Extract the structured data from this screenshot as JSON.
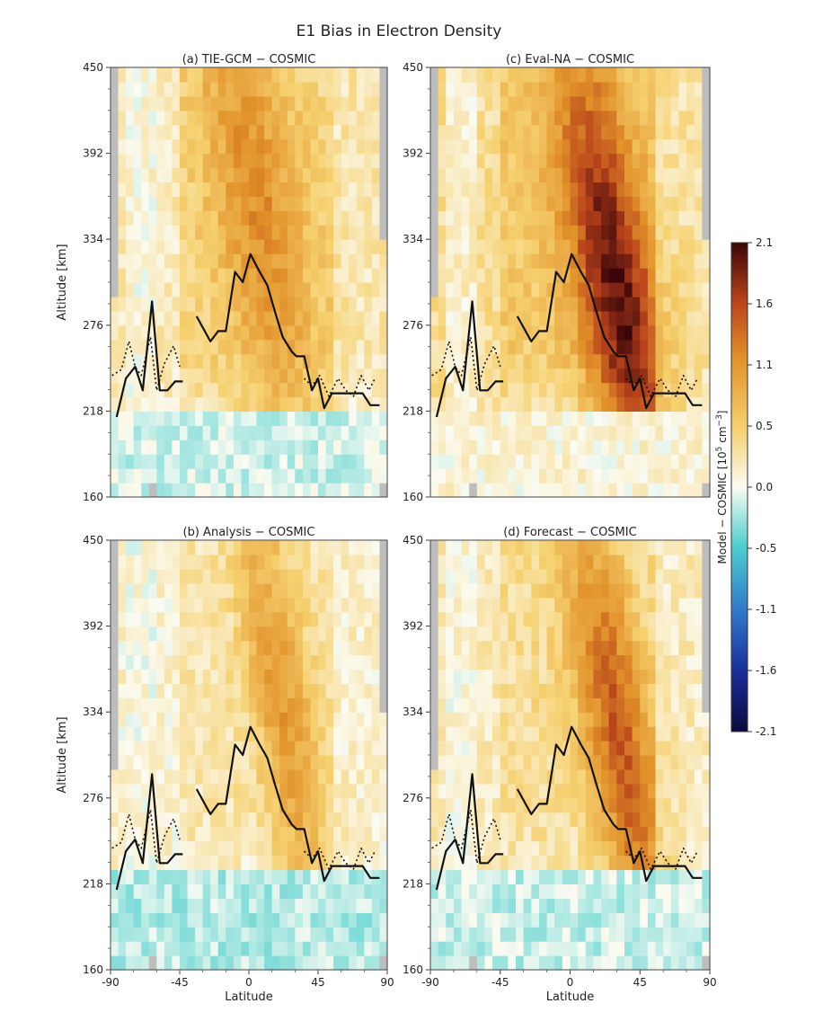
{
  "figure": {
    "suptitle": "E1 Bias in Electron Density"
  },
  "chart_data": [
    {
      "type": "heatmap",
      "panel": "a",
      "title": "(a) TIE-GCM − COSMIC",
      "xlabel": "",
      "ylabel": "Altitude [km]",
      "xlim": [
        -90,
        90
      ],
      "ylim": [
        160,
        450
      ],
      "xticks": [],
      "yticks": [
        160,
        218,
        276,
        334,
        392,
        450
      ],
      "bias_pattern": {
        "peak_lat": 5,
        "peak_alt": 360,
        "peak": 1.1,
        "tilt_deg_per_km": 0.14,
        "width_lat": 28,
        "bg": 0.45,
        "south_bg": 0.2,
        "low_alt_value": -0.12,
        "low_alt_cut": 222
      },
      "lines": [
        {
          "name": "",
          "style": "solid",
          "segments": [
            [
              [
                -86,
                214
              ],
              [
                -80,
                240
              ],
              [
                -74,
                248
              ],
              [
                -69,
                232
              ],
              [
                -63,
                292
              ],
              [
                -58,
                232
              ],
              [
                -53,
                232
              ],
              [
                -48,
                238
              ],
              [
                -43,
                238
              ]
            ],
            [
              [
                -34,
                282
              ],
              [
                -25,
                265
              ],
              [
                -20,
                272
              ],
              [
                -15,
                272
              ],
              [
                -9,
                312
              ],
              [
                -4,
                305
              ],
              [
                1,
                324
              ],
              [
                7,
                312
              ],
              [
                12,
                303
              ],
              [
                17,
                285
              ],
              [
                22,
                268
              ],
              [
                28,
                258
              ],
              [
                31,
                255
              ],
              [
                36,
                255
              ],
              [
                41,
                232
              ],
              [
                45,
                240
              ],
              [
                49,
                220
              ],
              [
                54,
                230
              ],
              [
                64,
                230
              ],
              [
                74,
                230
              ],
              [
                79,
                222
              ],
              [
                85,
                222
              ]
            ]
          ]
        },
        {
          "name": "",
          "style": "dotted",
          "segments": [
            [
              [
                -89,
                242
              ],
              [
                -83,
                246
              ],
              [
                -78,
                265
              ],
              [
                -74,
                248
              ],
              [
                -70,
                242
              ],
              [
                -64,
                268
              ],
              [
                -60,
                232
              ],
              [
                -55,
                250
              ],
              [
                -49,
                262
              ],
              [
                -45,
                248
              ]
            ],
            [
              [
                36,
                240
              ],
              [
                41,
                235
              ],
              [
                46,
                242
              ],
              [
                52,
                228
              ],
              [
                58,
                240
              ],
              [
                63,
                232
              ],
              [
                68,
                228
              ],
              [
                73,
                242
              ],
              [
                78,
                232
              ],
              [
                82,
                240
              ]
            ]
          ]
        }
      ]
    },
    {
      "type": "heatmap",
      "panel": "c",
      "title": "(c) Eval-NA − COSMIC",
      "xlabel": "",
      "ylabel": "",
      "xlim": [
        -90,
        90
      ],
      "ylim": [
        160,
        450
      ],
      "xticks": [],
      "yticks": [
        160,
        218,
        276,
        334,
        392,
        450
      ],
      "bias_pattern": {
        "peak_lat": 30,
        "peak_alt": 300,
        "peak": 2.0,
        "tilt_deg_per_km": 0.16,
        "width_lat": 26,
        "bg": 0.55,
        "south_bg": 0.35,
        "low_alt_value": 0.1,
        "low_alt_cut": 222
      },
      "lines": [
        {
          "name": "",
          "style": "solid",
          "segments": [
            [
              [
                -86,
                214
              ],
              [
                -80,
                240
              ],
              [
                -74,
                248
              ],
              [
                -69,
                232
              ],
              [
                -63,
                292
              ],
              [
                -58,
                232
              ],
              [
                -53,
                232
              ],
              [
                -48,
                238
              ],
              [
                -43,
                238
              ]
            ],
            [
              [
                -34,
                282
              ],
              [
                -25,
                265
              ],
              [
                -20,
                272
              ],
              [
                -15,
                272
              ],
              [
                -9,
                312
              ],
              [
                -4,
                305
              ],
              [
                1,
                324
              ],
              [
                7,
                312
              ],
              [
                12,
                303
              ],
              [
                17,
                285
              ],
              [
                22,
                268
              ],
              [
                28,
                258
              ],
              [
                31,
                255
              ],
              [
                36,
                255
              ],
              [
                41,
                232
              ],
              [
                45,
                240
              ],
              [
                49,
                220
              ],
              [
                54,
                230
              ],
              [
                64,
                230
              ],
              [
                74,
                230
              ],
              [
                79,
                222
              ],
              [
                85,
                222
              ]
            ]
          ]
        },
        {
          "name": "",
          "style": "dotted",
          "segments": [
            [
              [
                -89,
                242
              ],
              [
                -83,
                246
              ],
              [
                -78,
                265
              ],
              [
                -74,
                248
              ],
              [
                -70,
                242
              ],
              [
                -64,
                268
              ],
              [
                -60,
                232
              ],
              [
                -55,
                250
              ],
              [
                -49,
                262
              ],
              [
                -45,
                248
              ]
            ],
            [
              [
                36,
                240
              ],
              [
                41,
                235
              ],
              [
                46,
                242
              ],
              [
                52,
                228
              ],
              [
                58,
                240
              ],
              [
                63,
                232
              ],
              [
                68,
                228
              ],
              [
                73,
                242
              ],
              [
                78,
                232
              ],
              [
                82,
                240
              ]
            ]
          ]
        }
      ]
    },
    {
      "type": "heatmap",
      "panel": "b",
      "title": "(b) Analysis − COSMIC",
      "xlabel": "Latitude",
      "ylabel": "Altitude [km]",
      "xlim": [
        -90,
        90
      ],
      "ylim": [
        160,
        450
      ],
      "xticks": [
        -90,
        -45,
        0,
        45,
        90
      ],
      "yticks": [
        160,
        218,
        276,
        334,
        392,
        450
      ],
      "bias_pattern": {
        "peak_lat": 22,
        "peak_alt": 340,
        "peak": 1.0,
        "tilt_deg_per_km": 0.14,
        "width_lat": 20,
        "bg": 0.25,
        "south_bg": 0.1,
        "low_alt_value": -0.2,
        "low_alt_cut": 228
      },
      "lines": [
        {
          "name": "",
          "style": "solid",
          "segments": [
            [
              [
                -86,
                214
              ],
              [
                -80,
                240
              ],
              [
                -74,
                248
              ],
              [
                -69,
                232
              ],
              [
                -63,
                292
              ],
              [
                -58,
                232
              ],
              [
                -53,
                232
              ],
              [
                -48,
                238
              ],
              [
                -43,
                238
              ]
            ],
            [
              [
                -34,
                282
              ],
              [
                -25,
                265
              ],
              [
                -20,
                272
              ],
              [
                -15,
                272
              ],
              [
                -9,
                312
              ],
              [
                -4,
                305
              ],
              [
                1,
                324
              ],
              [
                7,
                312
              ],
              [
                12,
                303
              ],
              [
                17,
                285
              ],
              [
                22,
                268
              ],
              [
                28,
                258
              ],
              [
                31,
                255
              ],
              [
                36,
                255
              ],
              [
                41,
                232
              ],
              [
                45,
                240
              ],
              [
                49,
                220
              ],
              [
                54,
                230
              ],
              [
                64,
                230
              ],
              [
                74,
                230
              ],
              [
                79,
                222
              ],
              [
                85,
                222
              ]
            ]
          ]
        },
        {
          "name": "",
          "style": "dotted",
          "segments": [
            [
              [
                -89,
                242
              ],
              [
                -83,
                246
              ],
              [
                -78,
                265
              ],
              [
                -74,
                248
              ],
              [
                -70,
                242
              ],
              [
                -64,
                268
              ],
              [
                -60,
                232
              ],
              [
                -55,
                250
              ],
              [
                -49,
                262
              ],
              [
                -45,
                248
              ]
            ],
            [
              [
                36,
                240
              ],
              [
                41,
                235
              ],
              [
                46,
                242
              ],
              [
                52,
                228
              ],
              [
                58,
                240
              ],
              [
                63,
                232
              ],
              [
                68,
                228
              ],
              [
                73,
                242
              ],
              [
                78,
                232
              ],
              [
                82,
                240
              ]
            ]
          ]
        }
      ]
    },
    {
      "type": "heatmap",
      "panel": "d",
      "title": "(d) Forecast − COSMIC",
      "xlabel": "Latitude",
      "ylabel": "",
      "xlim": [
        -90,
        90
      ],
      "ylim": [
        160,
        450
      ],
      "xticks": [
        -90,
        -45,
        0,
        45,
        90
      ],
      "yticks": [
        160,
        218,
        276,
        334,
        392,
        450
      ],
      "bias_pattern": {
        "peak_lat": 32,
        "peak_alt": 315,
        "peak": 1.45,
        "tilt_deg_per_km": 0.16,
        "width_lat": 22,
        "bg": 0.35,
        "south_bg": 0.2,
        "low_alt_value": -0.15,
        "low_alt_cut": 228
      },
      "lines": [
        {
          "name": "",
          "style": "solid",
          "segments": [
            [
              [
                -86,
                214
              ],
              [
                -80,
                240
              ],
              [
                -74,
                248
              ],
              [
                -69,
                232
              ],
              [
                -63,
                292
              ],
              [
                -58,
                232
              ],
              [
                -53,
                232
              ],
              [
                -48,
                238
              ],
              [
                -43,
                238
              ]
            ],
            [
              [
                -34,
                282
              ],
              [
                -25,
                265
              ],
              [
                -20,
                272
              ],
              [
                -15,
                272
              ],
              [
                -9,
                312
              ],
              [
                -4,
                305
              ],
              [
                1,
                324
              ],
              [
                7,
                312
              ],
              [
                12,
                303
              ],
              [
                17,
                285
              ],
              [
                22,
                268
              ],
              [
                28,
                258
              ],
              [
                31,
                255
              ],
              [
                36,
                255
              ],
              [
                41,
                232
              ],
              [
                45,
                240
              ],
              [
                49,
                220
              ],
              [
                54,
                230
              ],
              [
                64,
                230
              ],
              [
                74,
                230
              ],
              [
                79,
                222
              ],
              [
                85,
                222
              ]
            ]
          ]
        },
        {
          "name": "",
          "style": "dotted",
          "segments": [
            [
              [
                -89,
                242
              ],
              [
                -83,
                246
              ],
              [
                -78,
                265
              ],
              [
                -74,
                248
              ],
              [
                -70,
                242
              ],
              [
                -64,
                268
              ],
              [
                -60,
                232
              ],
              [
                -55,
                250
              ],
              [
                -49,
                262
              ],
              [
                -45,
                248
              ]
            ],
            [
              [
                36,
                240
              ],
              [
                41,
                235
              ],
              [
                46,
                242
              ],
              [
                52,
                228
              ],
              [
                58,
                240
              ],
              [
                63,
                232
              ],
              [
                68,
                228
              ],
              [
                73,
                242
              ],
              [
                78,
                232
              ],
              [
                82,
                240
              ]
            ]
          ]
        }
      ]
    }
  ],
  "colorbar": {
    "label_main": "Model − COSMIC [10",
    "label_sup": "5",
    "label_unit": " cm",
    "label_sup2": "−3",
    "label_close": "]",
    "ticks": [
      "2.1",
      "1.6",
      "1.1",
      "0.5",
      "0.0",
      "-0.5",
      "-1.1",
      "-1.6",
      "-2.1"
    ],
    "vmin": -2.1,
    "vmax": 2.1,
    "colormap_stops": [
      [
        -2.1,
        "#0a0a3c"
      ],
      [
        -1.6,
        "#1a2d96"
      ],
      [
        -1.1,
        "#2f72c8"
      ],
      [
        -0.5,
        "#4fd0cf"
      ],
      [
        0.0,
        "#fbfbf2"
      ],
      [
        0.5,
        "#f6d170"
      ],
      [
        1.1,
        "#e2922a"
      ],
      [
        1.6,
        "#b8421b"
      ],
      [
        2.1,
        "#3c0509"
      ]
    ],
    "missing_color": "#bdbdbd"
  }
}
